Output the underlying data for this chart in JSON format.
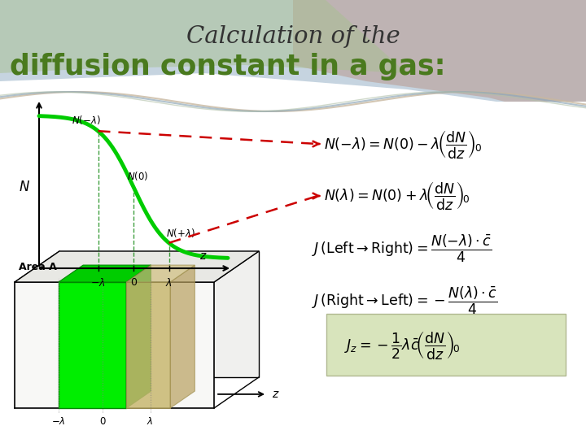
{
  "title1": "Calculation of the",
  "title2": "diffusion constant in a gas:",
  "title1_color": "#333333",
  "title2_color": "#4a7a1e",
  "bg_color": "#ffffff",
  "eq5_bg": "#d8e4bc",
  "graph_curve_color": "#00cc00",
  "arrow_color": "#cc0000",
  "axis_color": "#000000",
  "dashed_green_color": "#008800",
  "box_face_color": "#f5f5f5",
  "box_top_color": "#e8e8e8",
  "green_fill": "#00ee00",
  "green_side": "#009900",
  "tan_fill": "#c8b870",
  "tan_side": "#b0a060"
}
